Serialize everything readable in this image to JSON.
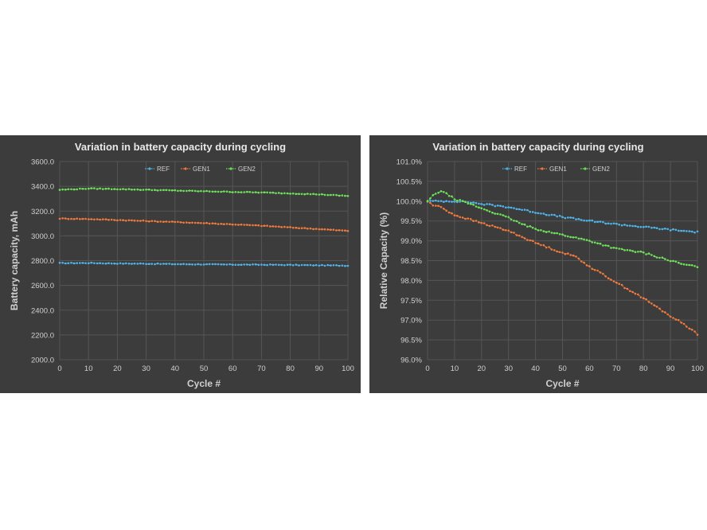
{
  "chart_data": [
    {
      "type": "line",
      "title": "Variation in battery capacity during cycling",
      "xlabel": "Cycle #",
      "ylabel": "Battery capacity, mAh",
      "xlim": [
        0,
        100
      ],
      "ylim": [
        2000,
        3600
      ],
      "xticks": [
        "0",
        "10",
        "20",
        "30",
        "40",
        "50",
        "60",
        "70",
        "80",
        "90",
        "100"
      ],
      "yticks": [
        "2000.0",
        "2200.0",
        "2400.0",
        "2600.0",
        "2800.0",
        "3000.0",
        "3200.0",
        "3400.0",
        "3600.0"
      ],
      "legend_position": "top-center",
      "series": [
        {
          "name": "REF",
          "color": "#4fb3e8",
          "x": [
            0,
            10,
            20,
            30,
            40,
            50,
            60,
            70,
            80,
            90,
            100
          ],
          "values": [
            2780,
            2781,
            2777,
            2775,
            2772,
            2770,
            2768,
            2767,
            2765,
            2762,
            2760
          ]
        },
        {
          "name": "GEN1",
          "color": "#f07a3c",
          "x": [
            0,
            10,
            20,
            30,
            40,
            50,
            60,
            70,
            80,
            90,
            100
          ],
          "values": [
            3140,
            3136,
            3128,
            3120,
            3112,
            3103,
            3093,
            3082,
            3068,
            3055,
            3040
          ]
        },
        {
          "name": "GEN2",
          "color": "#6ee05a",
          "x": [
            0,
            10,
            20,
            30,
            40,
            50,
            60,
            70,
            80,
            90,
            100
          ],
          "values": [
            3372,
            3382,
            3378,
            3372,
            3366,
            3360,
            3355,
            3350,
            3343,
            3335,
            3322
          ]
        }
      ]
    },
    {
      "type": "line",
      "title": "Variation in battery capacity during cycling",
      "xlabel": "Cycle #",
      "ylabel": "Relative Capacity (%)",
      "xlim": [
        0,
        100
      ],
      "ylim": [
        96,
        101
      ],
      "xticks": [
        "0",
        "10",
        "20",
        "30",
        "40",
        "50",
        "60",
        "70",
        "80",
        "90",
        "100"
      ],
      "yticks": [
        "96.0%",
        "96.5%",
        "97.0%",
        "97.5%",
        "98.0%",
        "98.5%",
        "99.0%",
        "99.5%",
        "100.0%",
        "100.5%",
        "101.0%"
      ],
      "legend_position": "top-center",
      "series": [
        {
          "name": "REF",
          "color": "#4fb3e8",
          "x": [
            0,
            5,
            10,
            15,
            20,
            30,
            40,
            50,
            60,
            70,
            80,
            90,
            95,
            100
          ],
          "values": [
            100.0,
            100.0,
            100.0,
            99.98,
            99.93,
            99.85,
            99.72,
            99.6,
            99.5,
            99.42,
            99.35,
            99.28,
            99.25,
            99.22
          ]
        },
        {
          "name": "GEN1",
          "color": "#f07a3c",
          "x": [
            0,
            2,
            5,
            10,
            15,
            20,
            30,
            40,
            50,
            55,
            60,
            70,
            80,
            90,
            95,
            100
          ],
          "values": [
            100.0,
            99.9,
            99.85,
            99.65,
            99.55,
            99.45,
            99.25,
            98.95,
            98.7,
            98.6,
            98.35,
            97.95,
            97.55,
            97.1,
            96.9,
            96.65
          ]
        },
        {
          "name": "GEN2",
          "color": "#6ee05a",
          "x": [
            0,
            3,
            5,
            8,
            10,
            15,
            20,
            25,
            30,
            35,
            40,
            50,
            60,
            70,
            80,
            90,
            95,
            100
          ],
          "values": [
            100.0,
            100.2,
            100.25,
            100.15,
            100.05,
            99.95,
            99.82,
            99.7,
            99.58,
            99.42,
            99.3,
            99.15,
            99.0,
            98.8,
            98.7,
            98.5,
            98.4,
            98.35
          ]
        }
      ]
    }
  ]
}
